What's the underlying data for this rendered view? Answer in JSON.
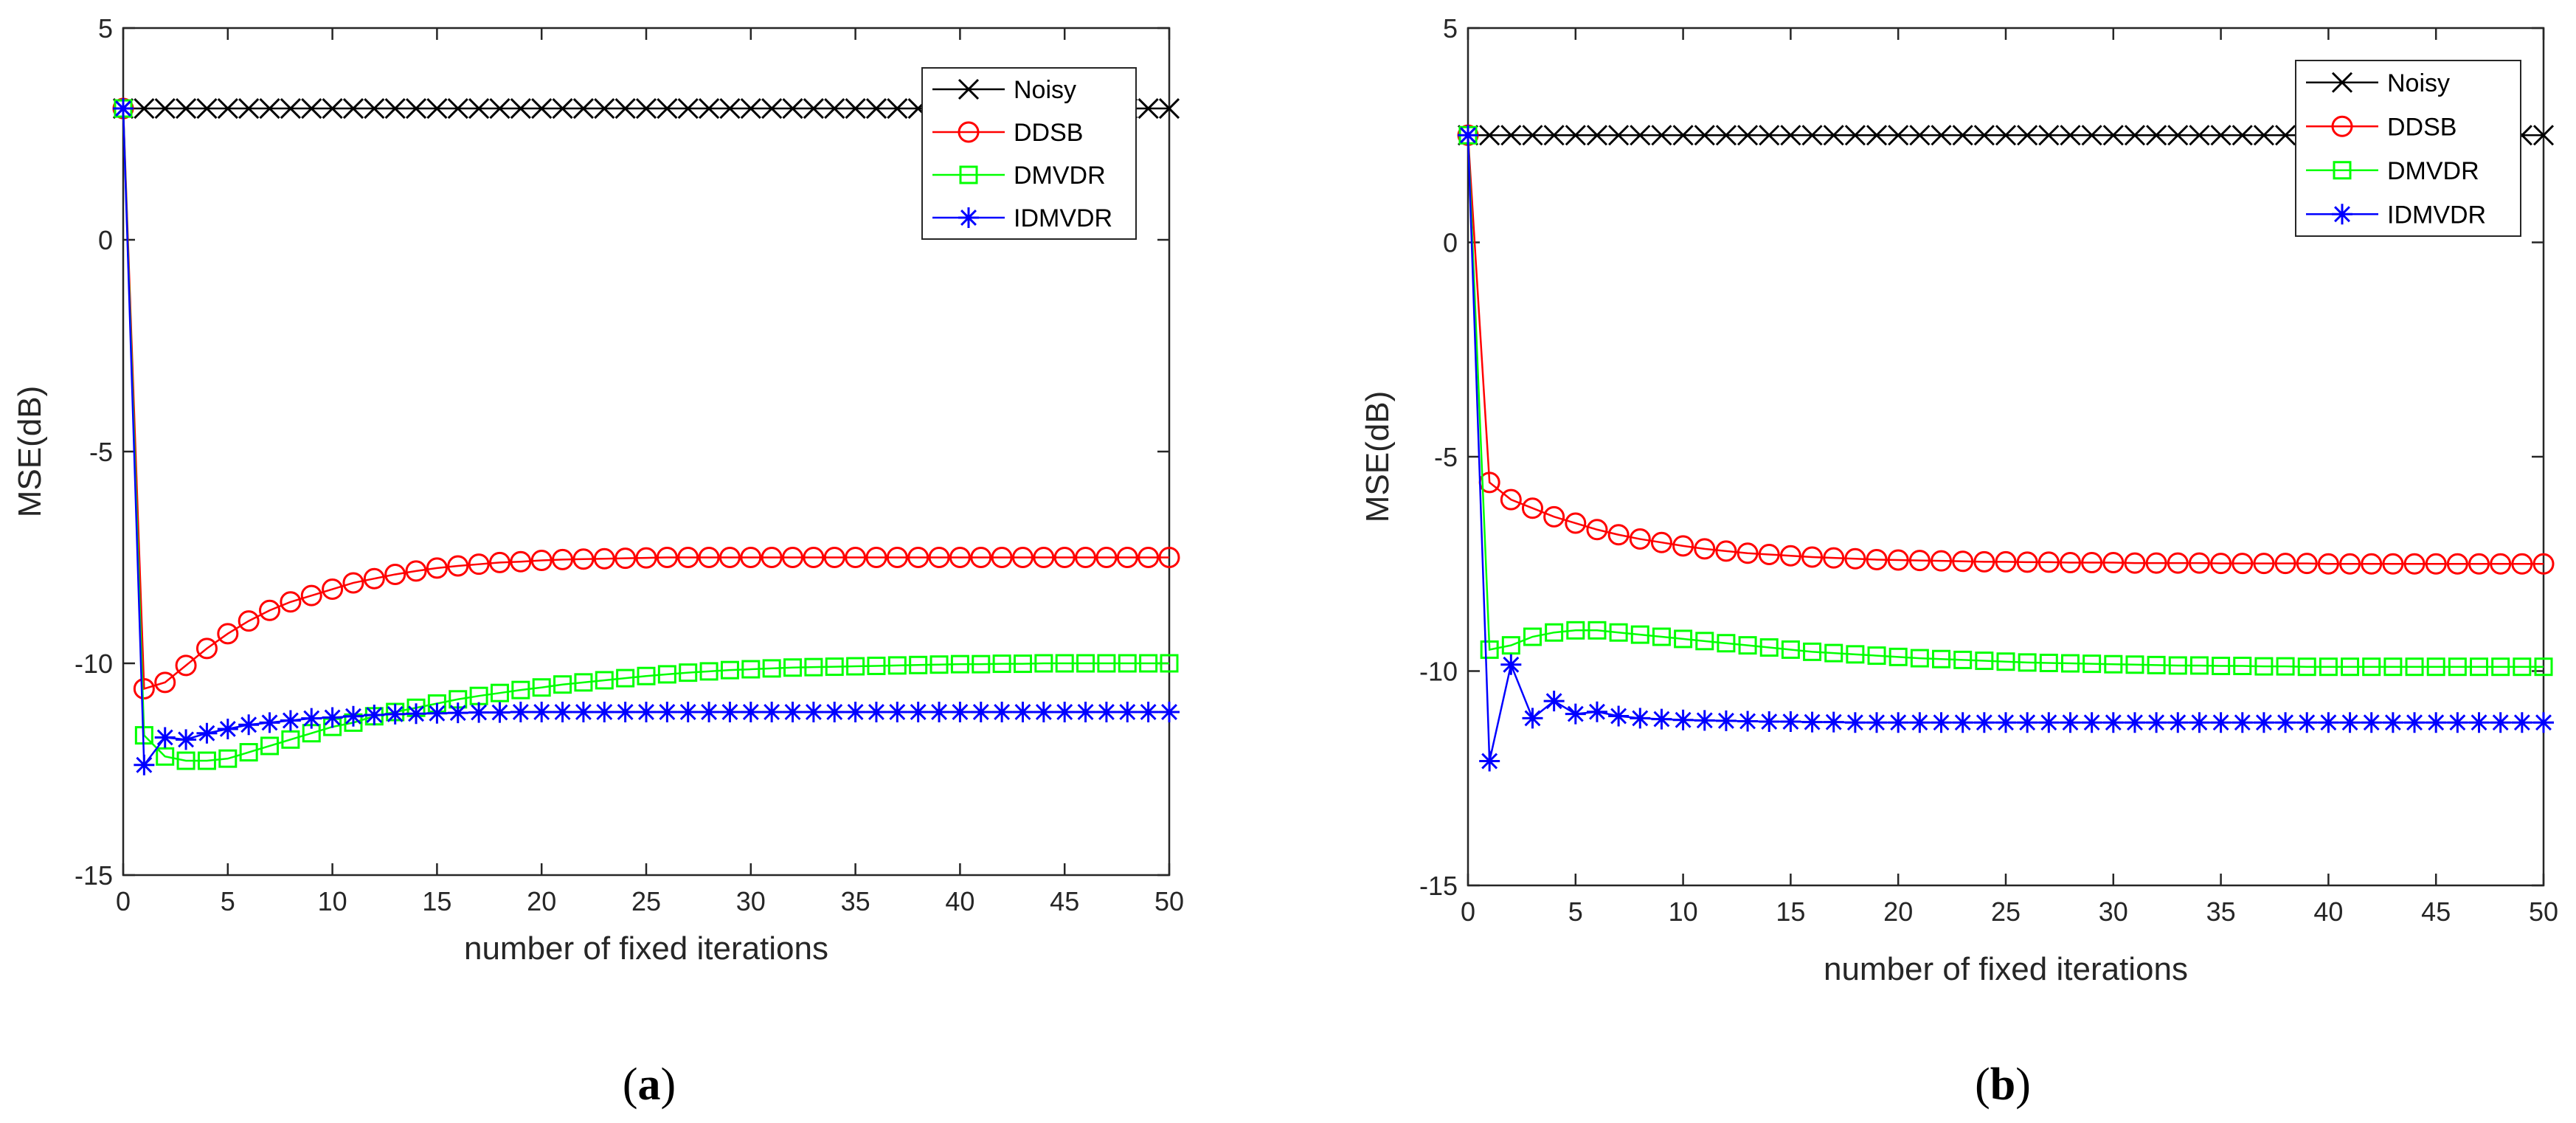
{
  "chart_data": [
    {
      "type": "line",
      "panel_label": "(a)",
      "panel_open": "(",
      "panel_letter": "a",
      "panel_close": ")",
      "xlabel": "number of fixed iterations",
      "ylabel": "MSE(dB)",
      "xlim": [
        0,
        50
      ],
      "ylim": [
        -15,
        5
      ],
      "xticks": [
        0,
        5,
        10,
        15,
        20,
        25,
        30,
        35,
        40,
        45,
        50
      ],
      "yticks": [
        -15,
        -10,
        -5,
        0,
        5
      ],
      "xtick_labels": [
        "0",
        "5",
        "10",
        "15",
        "20",
        "25",
        "30",
        "35",
        "40",
        "45",
        "50"
      ],
      "ytick_labels": [
        "-15",
        "-10",
        "-5",
        "0",
        "5"
      ],
      "legend_position": "top-right",
      "series": [
        {
          "name": "Noisy",
          "color": "#000000",
          "marker": "x",
          "values": [
            3.1,
            3.1,
            3.1,
            3.1,
            3.1,
            3.1,
            3.1,
            3.1,
            3.1,
            3.1,
            3.1,
            3.1,
            3.1,
            3.1,
            3.1,
            3.1,
            3.1,
            3.1,
            3.1,
            3.1,
            3.1,
            3.1,
            3.1,
            3.1,
            3.1,
            3.1,
            3.1,
            3.1,
            3.1,
            3.1,
            3.1,
            3.1,
            3.1,
            3.1,
            3.1,
            3.1,
            3.1,
            3.1,
            3.1,
            3.1,
            3.1,
            3.1,
            3.1,
            3.1,
            3.1,
            3.1,
            3.1,
            3.1,
            3.1,
            3.1,
            3.1
          ]
        },
        {
          "name": "DDSB",
          "color": "#ff0000",
          "marker": "o",
          "values": [
            3.1,
            -10.6,
            -10.45,
            -10.05,
            -9.65,
            -9.3,
            -9.0,
            -8.75,
            -8.55,
            -8.4,
            -8.25,
            -8.1,
            -8.0,
            -7.9,
            -7.82,
            -7.75,
            -7.7,
            -7.66,
            -7.62,
            -7.6,
            -7.57,
            -7.55,
            -7.54,
            -7.53,
            -7.52,
            -7.51,
            -7.5,
            -7.5,
            -7.5,
            -7.5,
            -7.5,
            -7.5,
            -7.5,
            -7.5,
            -7.5,
            -7.5,
            -7.5,
            -7.5,
            -7.5,
            -7.5,
            -7.5,
            -7.5,
            -7.5,
            -7.5,
            -7.5,
            -7.5,
            -7.5,
            -7.5,
            -7.5,
            -7.5,
            -7.5
          ]
        },
        {
          "name": "DMVDR",
          "color": "#00ff00",
          "marker": "s",
          "values": [
            3.1,
            -11.7,
            -12.2,
            -12.3,
            -12.3,
            -12.25,
            -12.1,
            -11.95,
            -11.8,
            -11.65,
            -11.5,
            -11.4,
            -11.25,
            -11.15,
            -11.05,
            -10.95,
            -10.85,
            -10.77,
            -10.7,
            -10.63,
            -10.57,
            -10.5,
            -10.45,
            -10.4,
            -10.35,
            -10.3,
            -10.26,
            -10.22,
            -10.19,
            -10.16,
            -10.14,
            -10.12,
            -10.1,
            -10.09,
            -10.08,
            -10.07,
            -10.06,
            -10.05,
            -10.04,
            -10.03,
            -10.02,
            -10.02,
            -10.01,
            -10.01,
            -10.0,
            -10.0,
            -10.0,
            -10.0,
            -10.0,
            -10.0,
            -10.0
          ]
        },
        {
          "name": "IDMVDR",
          "color": "#0000ff",
          "marker": "*",
          "values": [
            3.1,
            -12.4,
            -11.75,
            -11.8,
            -11.65,
            -11.55,
            -11.45,
            -11.4,
            -11.35,
            -11.3,
            -11.28,
            -11.25,
            -11.22,
            -11.2,
            -11.19,
            -11.18,
            -11.17,
            -11.16,
            -11.16,
            -11.15,
            -11.15,
            -11.15,
            -11.15,
            -11.15,
            -11.15,
            -11.15,
            -11.15,
            -11.15,
            -11.15,
            -11.15,
            -11.15,
            -11.15,
            -11.15,
            -11.15,
            -11.15,
            -11.15,
            -11.15,
            -11.15,
            -11.15,
            -11.15,
            -11.15,
            -11.15,
            -11.15,
            -11.15,
            -11.15,
            -11.15,
            -11.15,
            -11.15,
            -11.15,
            -11.15,
            -11.15
          ]
        }
      ]
    },
    {
      "type": "line",
      "panel_label": "(b)",
      "panel_open": "(",
      "panel_letter": "b",
      "panel_close": ")",
      "xlabel": "number of fixed iterations",
      "ylabel": "MSE(dB)",
      "xlim": [
        0,
        50
      ],
      "ylim": [
        -15,
        5
      ],
      "xticks": [
        0,
        5,
        10,
        15,
        20,
        25,
        30,
        35,
        40,
        45,
        50
      ],
      "yticks": [
        -15,
        -10,
        -5,
        0,
        5
      ],
      "xtick_labels": [
        "0",
        "5",
        "10",
        "15",
        "20",
        "25",
        "30",
        "35",
        "40",
        "45",
        "50"
      ],
      "ytick_labels": [
        "-15",
        "-10",
        "-5",
        "0",
        "5"
      ],
      "legend_position": "top-right",
      "series": [
        {
          "name": "Noisy",
          "color": "#000000",
          "marker": "x",
          "values": [
            2.5,
            2.5,
            2.5,
            2.5,
            2.5,
            2.5,
            2.5,
            2.5,
            2.5,
            2.5,
            2.5,
            2.5,
            2.5,
            2.5,
            2.5,
            2.5,
            2.5,
            2.5,
            2.5,
            2.5,
            2.5,
            2.5,
            2.5,
            2.5,
            2.5,
            2.5,
            2.5,
            2.5,
            2.5,
            2.5,
            2.5,
            2.5,
            2.5,
            2.5,
            2.5,
            2.5,
            2.5,
            2.5,
            2.5,
            2.5,
            2.5,
            2.5,
            2.5,
            2.5,
            2.5,
            2.5,
            2.5,
            2.5,
            2.5,
            2.5,
            2.5
          ]
        },
        {
          "name": "DDSB",
          "color": "#ff0000",
          "marker": "o",
          "values": [
            2.5,
            -5.6,
            -6.0,
            -6.2,
            -6.4,
            -6.55,
            -6.7,
            -6.82,
            -6.92,
            -7.0,
            -7.08,
            -7.15,
            -7.2,
            -7.25,
            -7.28,
            -7.31,
            -7.34,
            -7.36,
            -7.38,
            -7.4,
            -7.41,
            -7.42,
            -7.43,
            -7.44,
            -7.45,
            -7.45,
            -7.46,
            -7.46,
            -7.47,
            -7.47,
            -7.47,
            -7.48,
            -7.48,
            -7.48,
            -7.48,
            -7.49,
            -7.49,
            -7.49,
            -7.49,
            -7.49,
            -7.5,
            -7.5,
            -7.5,
            -7.5,
            -7.5,
            -7.5,
            -7.5,
            -7.5,
            -7.5,
            -7.5,
            -7.5
          ]
        },
        {
          "name": "DMVDR",
          "color": "#00ff00",
          "marker": "s",
          "values": [
            2.5,
            -9.5,
            -9.4,
            -9.2,
            -9.1,
            -9.05,
            -9.05,
            -9.1,
            -9.15,
            -9.2,
            -9.25,
            -9.3,
            -9.35,
            -9.4,
            -9.45,
            -9.5,
            -9.55,
            -9.58,
            -9.61,
            -9.64,
            -9.67,
            -9.7,
            -9.72,
            -9.74,
            -9.76,
            -9.78,
            -9.8,
            -9.81,
            -9.82,
            -9.83,
            -9.84,
            -9.85,
            -9.86,
            -9.87,
            -9.87,
            -9.88,
            -9.88,
            -9.89,
            -9.89,
            -9.9,
            -9.9,
            -9.9,
            -9.9,
            -9.9,
            -9.9,
            -9.9,
            -9.9,
            -9.9,
            -9.9,
            -9.9,
            -9.9
          ]
        },
        {
          "name": "IDMVDR",
          "color": "#0000ff",
          "marker": "*",
          "values": [
            2.5,
            -12.1,
            -9.85,
            -11.1,
            -10.7,
            -11.0,
            -10.95,
            -11.05,
            -11.1,
            -11.12,
            -11.14,
            -11.15,
            -11.16,
            -11.17,
            -11.18,
            -11.18,
            -11.19,
            -11.19,
            -11.2,
            -11.2,
            -11.2,
            -11.2,
            -11.2,
            -11.2,
            -11.2,
            -11.2,
            -11.2,
            -11.2,
            -11.2,
            -11.2,
            -11.2,
            -11.2,
            -11.2,
            -11.2,
            -11.2,
            -11.2,
            -11.2,
            -11.2,
            -11.2,
            -11.2,
            -11.2,
            -11.2,
            -11.2,
            -11.2,
            -11.2,
            -11.2,
            -11.2,
            -11.2,
            -11.2,
            -11.2,
            -11.2
          ]
        }
      ]
    }
  ]
}
